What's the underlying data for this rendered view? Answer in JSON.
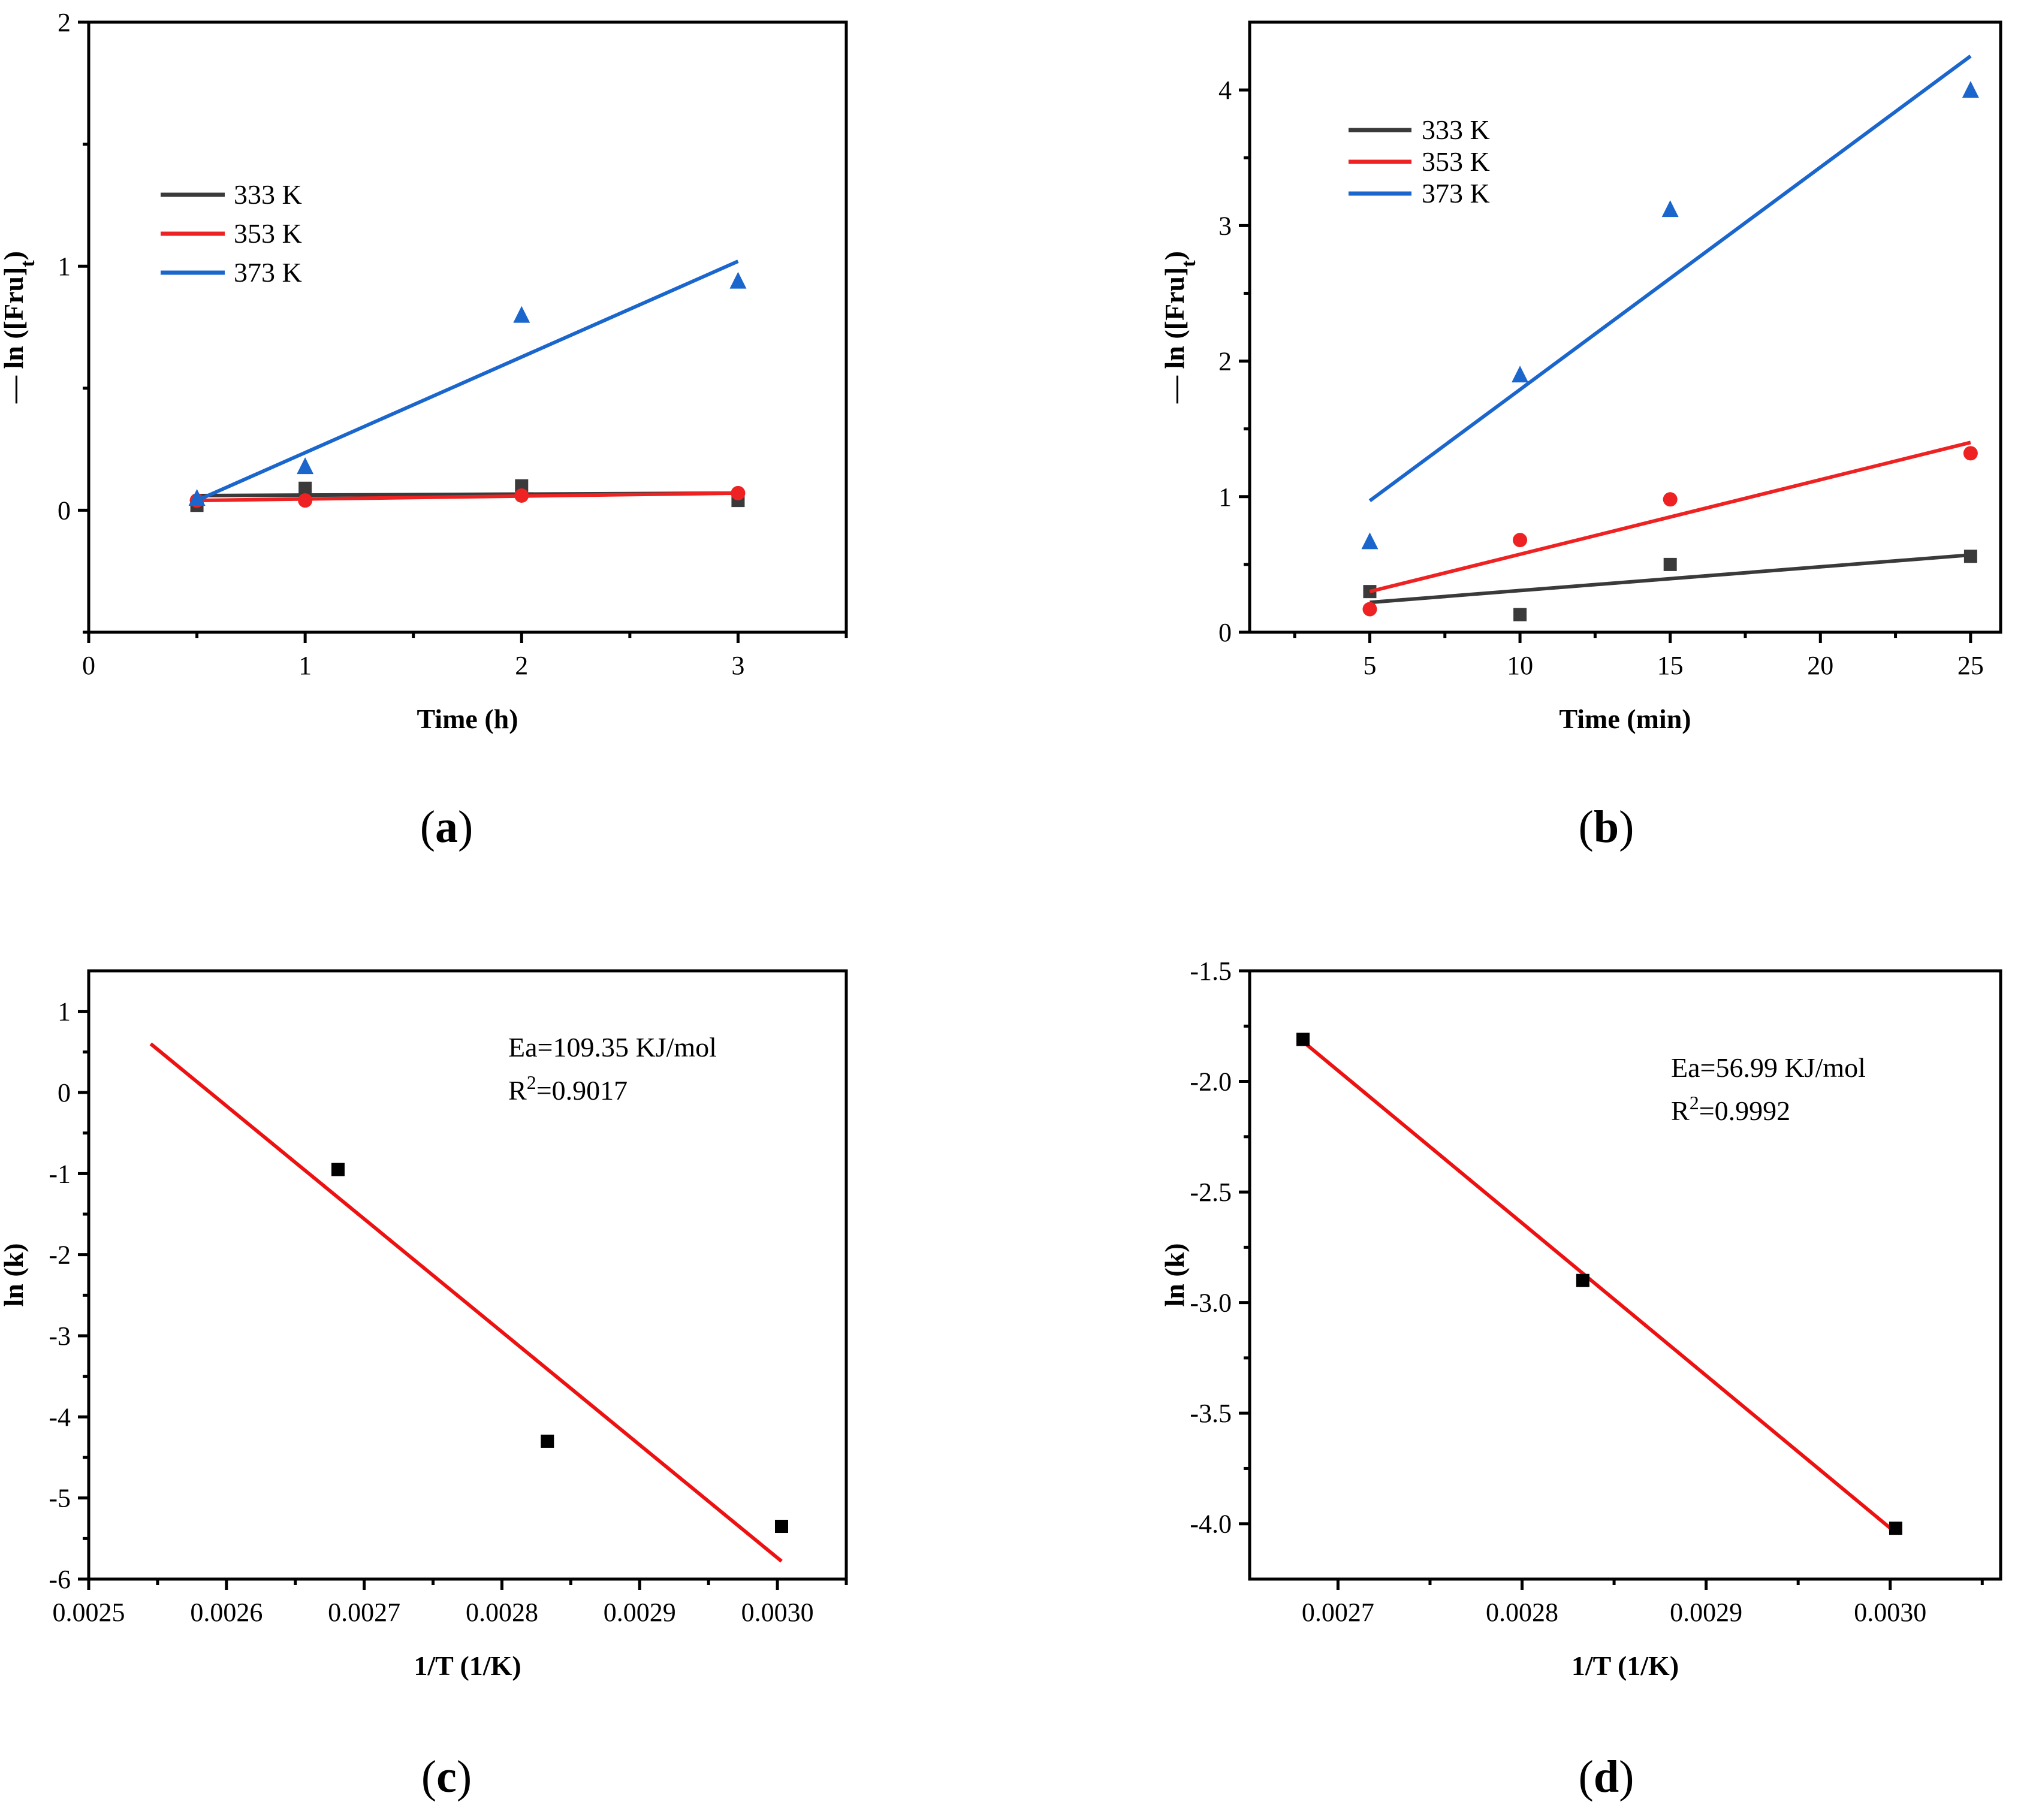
{
  "colors": {
    "black": "#3a3a3a",
    "red": "#ee2222",
    "blue": "#1a66cc",
    "fit_red": "#ee1111",
    "point_black": "#000000"
  },
  "chart_data": [
    {
      "id": "a",
      "panel_label": "a",
      "type": "scatter",
      "xlabel": "Time (h)",
      "ylabel_main": "— ln ([Fru]",
      "ylabel_sub": "t",
      "ylabel_tail": ")",
      "xlim": [
        0,
        3.5
      ],
      "ylim": [
        -0.5,
        2
      ],
      "xticks": [
        0,
        1,
        2,
        3
      ],
      "xtick_labels": [
        "0",
        "1",
        "2",
        "3"
      ],
      "xminor": [
        0.5,
        1.5,
        2.5,
        3.5
      ],
      "yticks": [
        0,
        1,
        2
      ],
      "ytick_labels": [
        "0",
        "1",
        "2"
      ],
      "yminor": [
        -0.5,
        0.5,
        1.5
      ],
      "legend": true,
      "series": [
        {
          "name": "333 K",
          "label": "333 K",
          "color": "#3a3a3a",
          "marker": "square",
          "x": [
            0.5,
            1,
            2,
            3
          ],
          "y": [
            0.02,
            0.09,
            0.1,
            0.04
          ],
          "fit": [
            [
              0.5,
              0.06
            ],
            [
              3,
              0.07
            ]
          ]
        },
        {
          "name": "353 K",
          "label": "353 K",
          "color": "#ee2222",
          "marker": "circle",
          "x": [
            0.5,
            1,
            2,
            3
          ],
          "y": [
            0.04,
            0.04,
            0.06,
            0.07
          ],
          "fit": [
            [
              0.5,
              0.04
            ],
            [
              3,
              0.07
            ]
          ]
        },
        {
          "name": "373 K",
          "label": "373 K",
          "color": "#1a66cc",
          "marker": "triangle",
          "x": [
            0.5,
            1,
            2,
            3
          ],
          "y": [
            0.05,
            0.18,
            0.8,
            0.94
          ],
          "fit": [
            [
              0.5,
              0.04
            ],
            [
              3,
              1.02
            ]
          ]
        }
      ]
    },
    {
      "id": "b",
      "panel_label": "b",
      "type": "scatter",
      "xlabel": "Time (min)",
      "ylabel_main": "— ln ([Fru]",
      "ylabel_sub": "t",
      "ylabel_tail": ")",
      "xlim": [
        1,
        26
      ],
      "ylim": [
        0,
        4.5
      ],
      "xticks": [
        5,
        10,
        15,
        20,
        25
      ],
      "xtick_labels": [
        "5",
        "10",
        "15",
        "20",
        "25"
      ],
      "xminor": [
        2.5,
        7.5,
        12.5,
        17.5,
        22.5
      ],
      "yticks": [
        0,
        1,
        2,
        3,
        4
      ],
      "ytick_labels": [
        "0",
        "1",
        "2",
        "3",
        "4"
      ],
      "yminor": [
        0.5,
        1.5,
        2.5,
        3.5
      ],
      "legend": true,
      "series": [
        {
          "name": "333 K",
          "label": "333 K",
          "color": "#3a3a3a",
          "marker": "square",
          "x": [
            5,
            10,
            15,
            25
          ],
          "y": [
            0.3,
            0.13,
            0.5,
            0.56
          ],
          "fit": [
            [
              5,
              0.22
            ],
            [
              25,
              0.57
            ]
          ]
        },
        {
          "name": "353 K",
          "label": "353 K",
          "color": "#ee2222",
          "marker": "circle",
          "x": [
            5,
            10,
            15,
            25
          ],
          "y": [
            0.17,
            0.68,
            0.98,
            1.32
          ],
          "fit": [
            [
              5,
              0.3
            ],
            [
              25,
              1.4
            ]
          ]
        },
        {
          "name": "373 K",
          "label": "373 K",
          "color": "#1a66cc",
          "marker": "triangle",
          "x": [
            5,
            10,
            15,
            25
          ],
          "y": [
            0.67,
            1.9,
            3.12,
            4.0
          ],
          "fit": [
            [
              5,
              0.97
            ],
            [
              25,
              4.25
            ]
          ]
        }
      ]
    },
    {
      "id": "c",
      "panel_label": "c",
      "type": "scatter",
      "xlabel": "1/T (1/K)",
      "ylabel_main": "ln (k)",
      "xlim": [
        0.0025,
        0.00305
      ],
      "ylim": [
        -6,
        1.5
      ],
      "xticks": [
        0.0025,
        0.0026,
        0.0027,
        0.0028,
        0.0029,
        0.003
      ],
      "xtick_labels": [
        "0.0025",
        "0.0026",
        "0.0027",
        "0.0028",
        "0.0029",
        "0.0030"
      ],
      "xminor": [
        0.00255,
        0.00265,
        0.00275,
        0.00285,
        0.00295,
        0.00305
      ],
      "yticks": [
        -6,
        -5,
        -4,
        -3,
        -2,
        -1,
        0,
        1
      ],
      "ytick_labels": [
        "-6",
        "-5",
        "-4",
        "-3",
        "-2",
        "-1",
        "0",
        "1"
      ],
      "yminor": [
        -5.5,
        -4.5,
        -3.5,
        -2.5,
        -1.5,
        -0.5,
        0.5
      ],
      "legend": false,
      "annotation": {
        "ea": "Ea=109.35 KJ/mol",
        "r2_label": "R",
        "r2_sup": "2",
        "r2_value": "=0.9017"
      },
      "series": [
        {
          "name": "ln(k)",
          "color": "#000000",
          "marker": "square",
          "x": [
            0.002681,
            0.002833,
            0.003003
          ],
          "y": [
            -0.95,
            -4.3,
            -5.35
          ],
          "fit": [
            [
              0.002545,
              0.6
            ],
            [
              0.003003,
              -5.78
            ]
          ],
          "fit_color": "#ee1111"
        }
      ]
    },
    {
      "id": "d",
      "panel_label": "d",
      "type": "scatter",
      "xlabel": "1/T (1/K)",
      "ylabel_main": "ln (k)",
      "xlim": [
        0.002652,
        0.00306
      ],
      "ylim": [
        -4.25,
        -1.5
      ],
      "xticks": [
        0.0027,
        0.0028,
        0.0029,
        0.003
      ],
      "xtick_labels": [
        "0.0027",
        "0.0028",
        "0.0029",
        "0.0030"
      ],
      "xminor": [
        0.00275,
        0.00285,
        0.00295,
        0.00305
      ],
      "yticks": [
        -4.0,
        -3.5,
        -3.0,
        -2.5,
        -2.0,
        -1.5
      ],
      "ytick_labels": [
        "-4.0",
        "-3.5",
        "-3.0",
        "-2.5",
        "-2.0",
        "-1.5"
      ],
      "yminor": [
        -3.75,
        -3.25,
        -2.75,
        -2.25,
        -1.75
      ],
      "legend": false,
      "annotation": {
        "ea": "Ea=56.99 KJ/mol",
        "r2_label": "R",
        "r2_sup": "2",
        "r2_value": "=0.9992"
      },
      "series": [
        {
          "name": "ln(k)",
          "color": "#000000",
          "marker": "square",
          "x": [
            0.002681,
            0.002833,
            0.003003
          ],
          "y": [
            -1.81,
            -2.9,
            -4.02
          ],
          "fit": [
            [
              0.002681,
              -1.82
            ],
            [
              0.003003,
              -4.04
            ]
          ],
          "fit_color": "#ee1111"
        }
      ]
    }
  ]
}
